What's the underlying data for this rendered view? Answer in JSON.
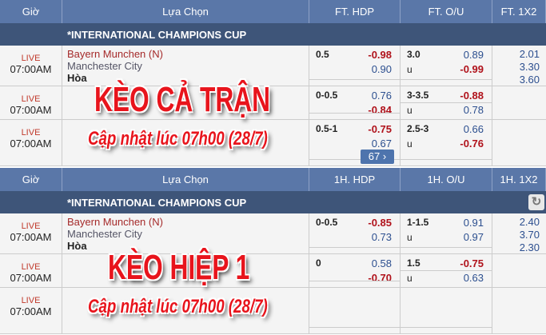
{
  "tables": [
    {
      "headers": [
        "Giờ",
        "Lựa Chọn",
        "FT. HDP",
        "FT. O/U",
        "FT. 1X2"
      ],
      "league": "*INTERNATIONAL CHAMPIONS CUP",
      "rows": [
        {
          "status": "LIVE",
          "time": "07:00AM",
          "home": "Bayern Munchen (N)",
          "away": "Manchester City",
          "draw": "Hòa",
          "hdp_line": "0.5",
          "hdp1": "-0.98",
          "hdp2": "0.90",
          "ou_line": "3.0",
          "ou_u": "u",
          "ou1": "0.89",
          "ou2": "-0.99",
          "x1": "2.01",
          "x2": "3.30",
          "x3": "3.60"
        },
        {
          "status": "LIVE",
          "time": "07:00AM",
          "hdp_line": "0-0.5",
          "hdp1": "0.76",
          "hdp2": "-0.84",
          "ou_line": "3-3.5",
          "ou_u": "u",
          "ou1": "-0.88",
          "ou2": "0.78"
        },
        {
          "status": "LIVE",
          "time": "07:00AM",
          "hdp_line": "0.5-1",
          "hdp1": "-0.75",
          "hdp2": "0.67",
          "ou_line": "2.5-3",
          "ou_u": "u",
          "ou1": "0.66",
          "ou2": "-0.76"
        }
      ],
      "more_label": "67 ›",
      "overlay_title": "KÈO CẢ TRẬN",
      "overlay_sub": "Cập nhật lúc 07h00 (28/7)"
    },
    {
      "headers": [
        "Giờ",
        "Lựa Chọn",
        "1H. HDP",
        "1H. O/U",
        "1H. 1X2"
      ],
      "league": "*INTERNATIONAL CHAMPIONS CUP",
      "rows": [
        {
          "status": "LIVE",
          "time": "07:00AM",
          "home": "Bayern Munchen (N)",
          "away": "Manchester City",
          "draw": "Hòa",
          "hdp_line": "0-0.5",
          "hdp1": "-0.85",
          "hdp2": "0.73",
          "ou_line": "1-1.5",
          "ou_u": "u",
          "ou1": "0.91",
          "ou2": "0.97",
          "x1": "2.40",
          "x2": "3.70",
          "x3": "2.30"
        },
        {
          "status": "LIVE",
          "time": "07:00AM",
          "hdp_line": "0",
          "hdp1": "0.58",
          "hdp2": "-0.70",
          "ou_line": "1.5",
          "ou_u": "u",
          "ou1": "-0.75",
          "ou2": "0.63"
        },
        {
          "status": "LIVE",
          "time": "07:00AM"
        }
      ],
      "overlay_title": "KÈO HIỆP 1",
      "overlay_sub": "Cập nhật lúc 07h00 (28/7)"
    }
  ],
  "colors": {
    "header": "#5a77a8",
    "league": "#3e5579",
    "negative": "#b0121b",
    "positive": "#2c4f8f",
    "overlay": "#e8141c"
  }
}
